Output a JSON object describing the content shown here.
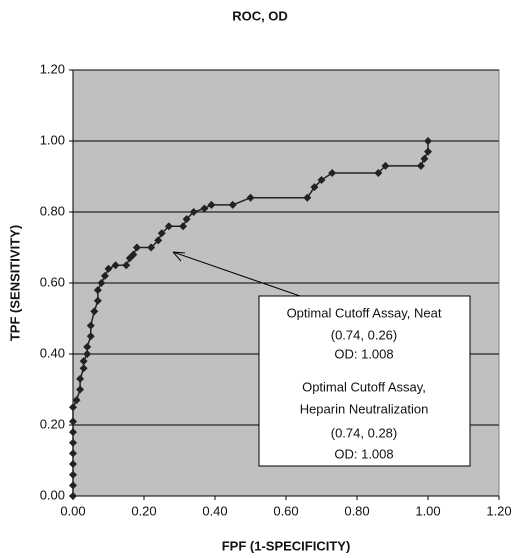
{
  "chart_data": {
    "type": "line",
    "title": "ROC, OD",
    "xlabel": "FPF (1-SPECIFICITY)",
    "ylabel": "TPF (SENSITIVITY)",
    "x": [
      0,
      0,
      0,
      0,
      0,
      0,
      0,
      0,
      0,
      0.01,
      0.02,
      0.02,
      0.03,
      0.03,
      0.04,
      0.04,
      0.05,
      0.05,
      0.06,
      0.07,
      0.07,
      0.08,
      0.09,
      0.1,
      0.12,
      0.15,
      0.16,
      0.17,
      0.18,
      0.22,
      0.24,
      0.25,
      0.27,
      0.31,
      0.32,
      0.34,
      0.37,
      0.39,
      0.45,
      0.5,
      0.66,
      0.68,
      0.7,
      0.73,
      0.86,
      0.88,
      0.98,
      0.99,
      1.0,
      1.0
    ],
    "series": [
      {
        "name": "ROC",
        "color": "#222222",
        "values": [
          0,
          0.03,
          0.06,
          0.09,
          0.12,
          0.15,
          0.18,
          0.21,
          0.25,
          0.27,
          0.3,
          0.33,
          0.36,
          0.38,
          0.4,
          0.42,
          0.45,
          0.48,
          0.52,
          0.55,
          0.58,
          0.6,
          0.62,
          0.64,
          0.65,
          0.65,
          0.67,
          0.68,
          0.7,
          0.7,
          0.72,
          0.74,
          0.76,
          0.76,
          0.78,
          0.8,
          0.81,
          0.82,
          0.82,
          0.84,
          0.84,
          0.87,
          0.89,
          0.91,
          0.91,
          0.93,
          0.93,
          0.95,
          0.97,
          1.0
        ]
      }
    ],
    "xlim": [
      0,
      1.2
    ],
    "ylim": [
      0,
      1.2
    ],
    "xticks": [
      {
        "value": 0,
        "label": "0.00"
      },
      {
        "value": 0.2,
        "label": "0.20"
      },
      {
        "value": 0.4,
        "label": "0.40"
      },
      {
        "value": 0.6,
        "label": "0.60"
      },
      {
        "value": 0.8,
        "label": "0.80"
      },
      {
        "value": 1.0,
        "label": "1.00"
      },
      {
        "value": 1.2,
        "label": "1.20"
      }
    ],
    "yticks": [
      {
        "value": 0,
        "label": "0.00"
      },
      {
        "value": 0.2,
        "label": "0.20"
      },
      {
        "value": 0.4,
        "label": "0.40"
      },
      {
        "value": 0.6,
        "label": "0.60"
      },
      {
        "value": 0.8,
        "label": "0.80"
      },
      {
        "value": 1.0,
        "label": "1.00"
      },
      {
        "value": 1.2,
        "label": "1.20"
      }
    ],
    "grid": true,
    "annotation": {
      "lines": [
        "Optimal Cutoff Assay, Neat",
        "(0.74, 0.26)",
        "OD: 1.008",
        "Optimal Cutoff Assay,",
        "Heparin Neutralization",
        "(0.74, 0.28)",
        "OD: 1.008"
      ]
    }
  }
}
